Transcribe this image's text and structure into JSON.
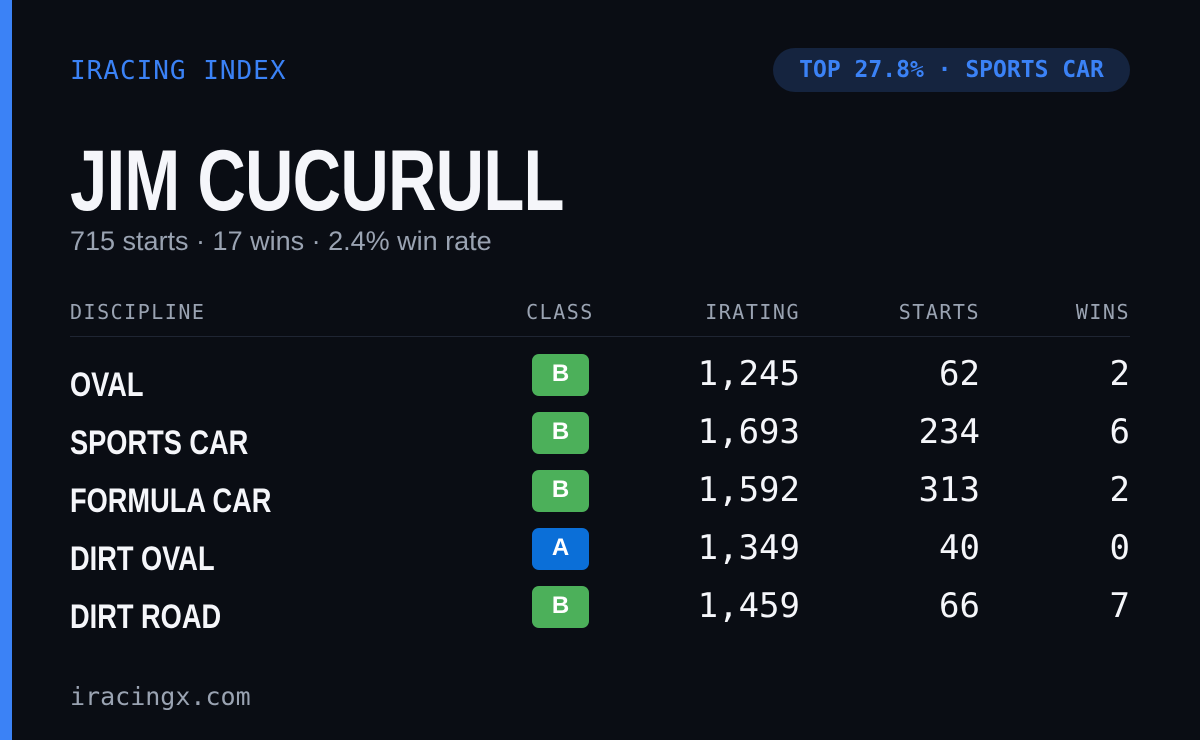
{
  "header": {
    "label": "IRACING INDEX",
    "badge": "TOP 27.8% · SPORTS CAR"
  },
  "driver": {
    "name": "JIM CUCURULL",
    "summary": "715 starts · 17 wins · 2.4% win rate"
  },
  "table": {
    "columns": [
      "DISCIPLINE",
      "CLASS",
      "IRATING",
      "STARTS",
      "WINS"
    ],
    "rows": [
      [
        "OVAL",
        "B",
        "1,245",
        "62",
        "2"
      ],
      [
        "SPORTS CAR",
        "B",
        "1,693",
        "234",
        "6"
      ],
      [
        "FORMULA CAR",
        "B",
        "1,592",
        "313",
        "2"
      ],
      [
        "DIRT OVAL",
        "A",
        "1,349",
        "40",
        "0"
      ],
      [
        "DIRT ROAD",
        "B",
        "1,459",
        "66",
        "7"
      ]
    ]
  },
  "footer": {
    "site": "iracingx.com"
  }
}
